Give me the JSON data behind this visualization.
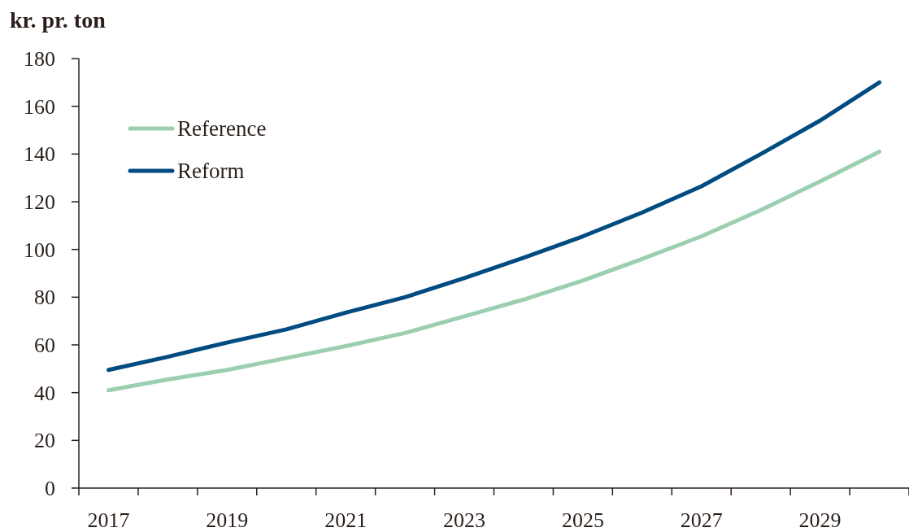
{
  "chart_data": {
    "type": "line",
    "ylabel": "kr. pr. ton",
    "categories": [
      "2017",
      null,
      "2019",
      null,
      "2021",
      null,
      "2023",
      null,
      "2025",
      null,
      "2027",
      null,
      "2029",
      null
    ],
    "series": [
      {
        "name": "Reference",
        "color": "#9ccfb0",
        "values": [
          41,
          45.5,
          49.5,
          54.5,
          59.5,
          65,
          72,
          79,
          87,
          96,
          105.5,
          116.5,
          128.5,
          141
        ]
      },
      {
        "name": "Reform",
        "color": "#004b80",
        "values": [
          49.5,
          55,
          61,
          66.5,
          73.5,
          80,
          88,
          96.5,
          105.5,
          115.5,
          126.5,
          140,
          154,
          170
        ]
      }
    ],
    "ylim": [
      0,
      180
    ],
    "yticks": [
      0,
      20,
      40,
      60,
      80,
      100,
      120,
      140,
      160,
      180
    ],
    "grid": false,
    "legend": "top left",
    "marker": "none",
    "line_style": "solid"
  }
}
